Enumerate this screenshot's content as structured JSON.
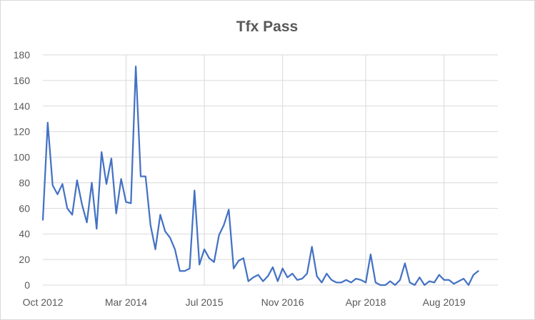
{
  "chart_data": {
    "type": "line",
    "title": "Tfx Pass",
    "xlabel": "",
    "ylabel": "",
    "ylim": [
      0,
      180
    ],
    "yticks": [
      0,
      20,
      40,
      60,
      80,
      100,
      120,
      140,
      160,
      180
    ],
    "xlim": [
      "2012-10",
      "2020-07"
    ],
    "xticks": [
      {
        "label": "Oct 2012",
        "value": "2012-10"
      },
      {
        "label": "Mar 2014",
        "value": "2014-03"
      },
      {
        "label": "Jul 2015",
        "value": "2015-07"
      },
      {
        "label": "Nov 2016",
        "value": "2016-11"
      },
      {
        "label": "Apr 2018",
        "value": "2018-04"
      },
      {
        "label": "Aug 2019",
        "value": "2019-08"
      }
    ],
    "grid": {
      "horizontal": true,
      "vertical": true
    },
    "legend": "none",
    "series": [
      {
        "color": "#4472c4",
        "points": [
          [
            "2012-10",
            51
          ],
          [
            "2012-11",
            127
          ],
          [
            "2012-12",
            78
          ],
          [
            "2013-01",
            71
          ],
          [
            "2013-02",
            79
          ],
          [
            "2013-03",
            60
          ],
          [
            "2013-04",
            55
          ],
          [
            "2013-05",
            82
          ],
          [
            "2013-06",
            63
          ],
          [
            "2013-07",
            49
          ],
          [
            "2013-08",
            80
          ],
          [
            "2013-09",
            44
          ],
          [
            "2013-10",
            104
          ],
          [
            "2013-11",
            79
          ],
          [
            "2013-12",
            99
          ],
          [
            "2014-01",
            56
          ],
          [
            "2014-02",
            83
          ],
          [
            "2014-03",
            65
          ],
          [
            "2014-04",
            64
          ],
          [
            "2014-05",
            171
          ],
          [
            "2014-06",
            85
          ],
          [
            "2014-07",
            85
          ],
          [
            "2014-08",
            47
          ],
          [
            "2014-09",
            28
          ],
          [
            "2014-10",
            55
          ],
          [
            "2014-11",
            42
          ],
          [
            "2014-12",
            37
          ],
          [
            "2015-01",
            28
          ],
          [
            "2015-02",
            11
          ],
          [
            "2015-03",
            11
          ],
          [
            "2015-04",
            13
          ],
          [
            "2015-05",
            74
          ],
          [
            "2015-06",
            16
          ],
          [
            "2015-07",
            28
          ],
          [
            "2015-08",
            21
          ],
          [
            "2015-09",
            18
          ],
          [
            "2015-10",
            39
          ],
          [
            "2015-11",
            47
          ],
          [
            "2015-12",
            59
          ],
          [
            "2016-01",
            13
          ],
          [
            "2016-02",
            19
          ],
          [
            "2016-03",
            21
          ],
          [
            "2016-04",
            3
          ],
          [
            "2016-05",
            6
          ],
          [
            "2016-06",
            8
          ],
          [
            "2016-07",
            3
          ],
          [
            "2016-08",
            7
          ],
          [
            "2016-09",
            14
          ],
          [
            "2016-10",
            3
          ],
          [
            "2016-11",
            13
          ],
          [
            "2016-12",
            6
          ],
          [
            "2017-01",
            9
          ],
          [
            "2017-02",
            4
          ],
          [
            "2017-03",
            5
          ],
          [
            "2017-04",
            9
          ],
          [
            "2017-05",
            30
          ],
          [
            "2017-06",
            7
          ],
          [
            "2017-07",
            2
          ],
          [
            "2017-08",
            9
          ],
          [
            "2017-09",
            4
          ],
          [
            "2017-10",
            2
          ],
          [
            "2017-11",
            2
          ],
          [
            "2017-12",
            4
          ],
          [
            "2018-01",
            2
          ],
          [
            "2018-02",
            5
          ],
          [
            "2018-03",
            4
          ],
          [
            "2018-04",
            2
          ],
          [
            "2018-05",
            24
          ],
          [
            "2018-06",
            2
          ],
          [
            "2018-07",
            0
          ],
          [
            "2018-08",
            0
          ],
          [
            "2018-09",
            3
          ],
          [
            "2018-10",
            0
          ],
          [
            "2018-11",
            4
          ],
          [
            "2018-12",
            17
          ],
          [
            "2019-01",
            2
          ],
          [
            "2019-02",
            0
          ],
          [
            "2019-03",
            6
          ],
          [
            "2019-04",
            0
          ],
          [
            "2019-05",
            3
          ],
          [
            "2019-06",
            2
          ],
          [
            "2019-07",
            8
          ],
          [
            "2019-08",
            4
          ],
          [
            "2019-09",
            4
          ],
          [
            "2019-10",
            1
          ],
          [
            "2019-11",
            3
          ],
          [
            "2019-12",
            5
          ],
          [
            "2020-01",
            0
          ],
          [
            "2020-02",
            8
          ],
          [
            "2020-03",
            11
          ]
        ]
      }
    ]
  }
}
